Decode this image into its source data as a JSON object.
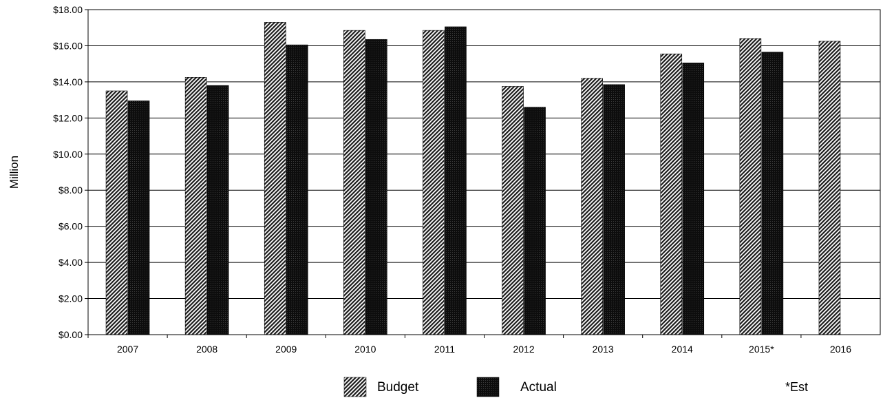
{
  "chart_data": {
    "type": "bar",
    "categories": [
      "2007",
      "2008",
      "2009",
      "2010",
      "2011",
      "2012",
      "2013",
      "2014",
      "2015*",
      "2016"
    ],
    "series": [
      {
        "name": "Budget",
        "values": [
          13.5,
          14.25,
          17.3,
          16.85,
          16.85,
          13.75,
          14.2,
          15.55,
          16.4,
          16.25
        ]
      },
      {
        "name": "Actual",
        "values": [
          12.95,
          13.8,
          16.05,
          16.35,
          17.05,
          12.6,
          13.85,
          15.05,
          15.65,
          null
        ]
      }
    ],
    "ylabel": "Million",
    "xlabel": "",
    "ylim": [
      0,
      18
    ],
    "yticks": [
      "$0.00",
      "$2.00",
      "$4.00",
      "$6.00",
      "$8.00",
      "$10.00",
      "$12.00",
      "$14.00",
      "$16.00",
      "$18.00"
    ],
    "grid": true,
    "legend_position": "bottom-center",
    "note": "*Est"
  }
}
